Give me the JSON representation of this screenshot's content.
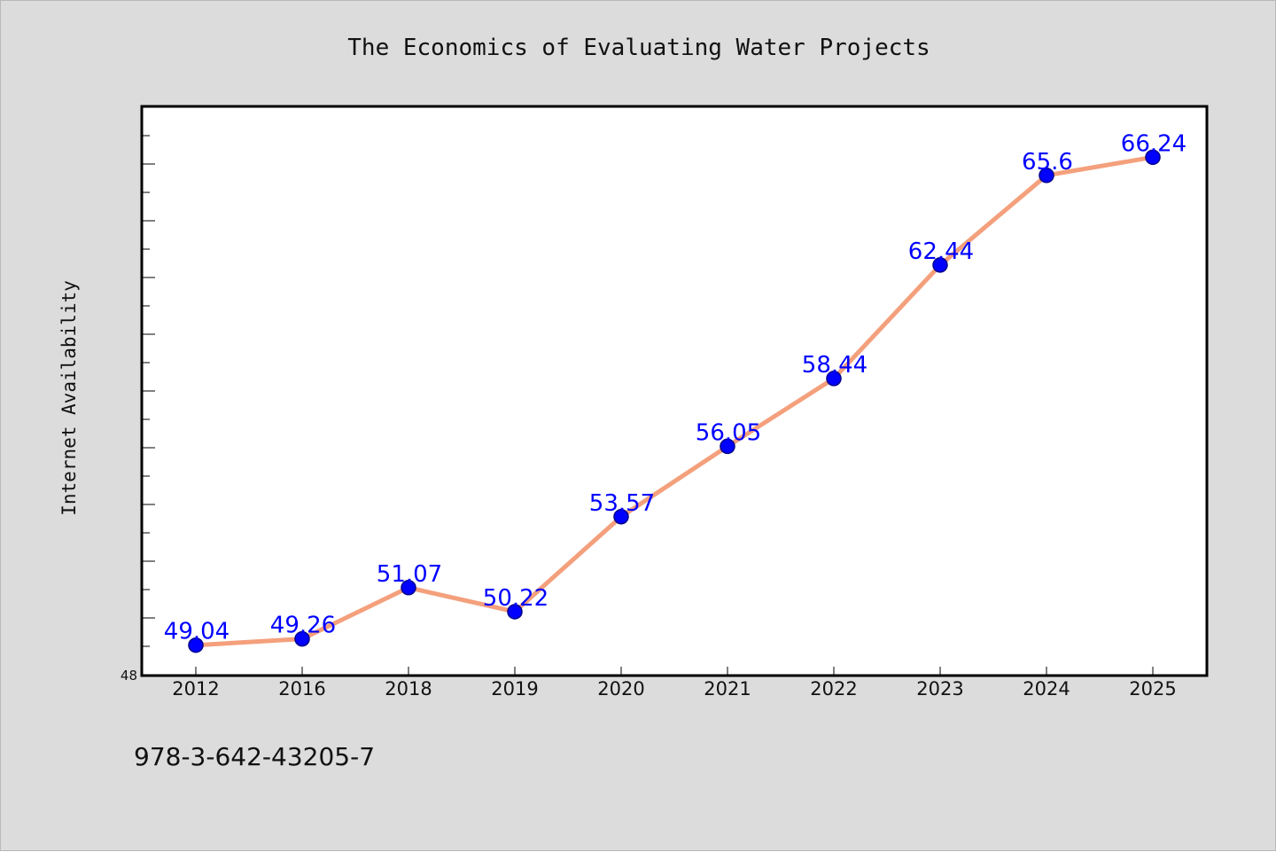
{
  "colors": {
    "line": "#f4a07c",
    "marker": "#0000ff",
    "marker_edge": "#00008b",
    "data_label": "#0000ff",
    "background": "#dcdcdc",
    "plot_area": "#ffffff"
  },
  "footer": {
    "isbn": "978-3-642-43205-7"
  },
  "chart_data": {
    "type": "line",
    "title": "The Economics of Evaluating Water Projects",
    "xlabel": "",
    "ylabel": "Internet Availability",
    "categories": [
      "2012",
      "2016",
      "2018",
      "2019",
      "2020",
      "2021",
      "2022",
      "2023",
      "2024",
      "2025"
    ],
    "series": [
      {
        "values": [
          49.04,
          49.26,
          51.07,
          50.22,
          53.57,
          56.05,
          58.44,
          62.44,
          65.6,
          66.24
        ]
      }
    ],
    "data_labels": [
      "49.04",
      "49.26",
      "51.07",
      "50.22",
      "53.57",
      "56.05",
      "58.44",
      "62.44",
      "65.6",
      "66.24"
    ],
    "ylim": [
      48,
      68
    ],
    "yticks_labeled": [
      "48"
    ],
    "grid": false,
    "legend": "none"
  }
}
